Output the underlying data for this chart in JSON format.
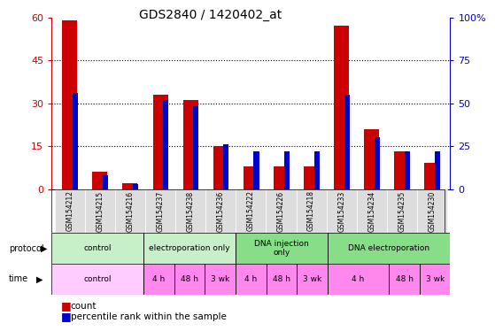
{
  "title": "GDS2840 / 1420402_at",
  "samples": [
    "GSM154212",
    "GSM154215",
    "GSM154216",
    "GSM154237",
    "GSM154238",
    "GSM154236",
    "GSM154222",
    "GSM154226",
    "GSM154218",
    "GSM154233",
    "GSM154234",
    "GSM154235",
    "GSM154230"
  ],
  "count_values": [
    59,
    6,
    2,
    33,
    31,
    15,
    8,
    8,
    8,
    57,
    21,
    13,
    9
  ],
  "percentile_values": [
    56,
    8,
    3,
    52,
    48,
    26,
    22,
    22,
    22,
    55,
    30,
    22,
    22
  ],
  "red_color": "#cc0000",
  "blue_color": "#0000cc",
  "ylim_left": [
    0,
    60
  ],
  "ylim_right": [
    0,
    100
  ],
  "yticks_left": [
    0,
    15,
    30,
    45,
    60
  ],
  "yticks_right": [
    0,
    25,
    50,
    75,
    100
  ],
  "yticklabels_right": [
    "0",
    "25",
    "50",
    "75",
    "100%"
  ],
  "bg_color": "#ffffff",
  "legend_count": "count",
  "legend_pct": "percentile rank within the sample",
  "protocol_groups": [
    {
      "label": "control",
      "start": 0,
      "end": 3,
      "color": "#c8f0c8"
    },
    {
      "label": "electroporation only",
      "start": 3,
      "end": 6,
      "color": "#c8f0c8"
    },
    {
      "label": "DNA injection\nonly",
      "start": 6,
      "end": 9,
      "color": "#88dd88"
    },
    {
      "label": "DNA electroporation",
      "start": 9,
      "end": 13,
      "color": "#88dd88"
    }
  ],
  "time_groups": [
    {
      "label": "control",
      "start": 0,
      "end": 3,
      "color": "#ffccff"
    },
    {
      "label": "4 h",
      "start": 3,
      "end": 4,
      "color": "#ff88ee"
    },
    {
      "label": "48 h",
      "start": 4,
      "end": 5,
      "color": "#ff88ee"
    },
    {
      "label": "3 wk",
      "start": 5,
      "end": 6,
      "color": "#ff88ee"
    },
    {
      "label": "4 h",
      "start": 6,
      "end": 7,
      "color": "#ff88ee"
    },
    {
      "label": "48 h",
      "start": 7,
      "end": 8,
      "color": "#ff88ee"
    },
    {
      "label": "3 wk",
      "start": 8,
      "end": 9,
      "color": "#ff88ee"
    },
    {
      "label": "4 h",
      "start": 9,
      "end": 11,
      "color": "#ff88ee"
    },
    {
      "label": "48 h",
      "start": 11,
      "end": 12,
      "color": "#ff88ee"
    },
    {
      "label": "3 wk",
      "start": 12,
      "end": 13,
      "color": "#ff88ee"
    }
  ]
}
